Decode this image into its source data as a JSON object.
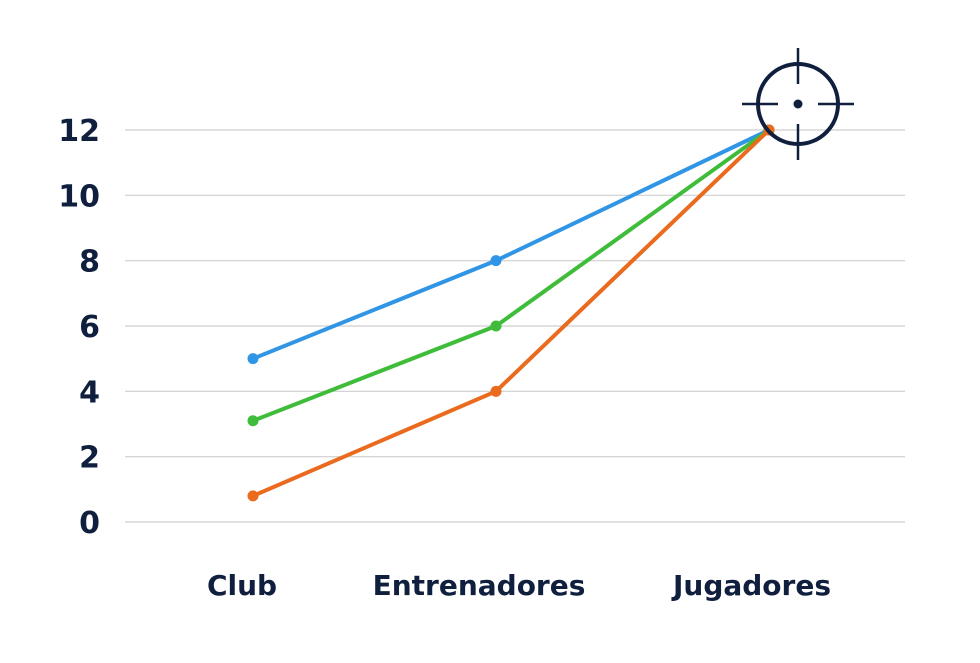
{
  "chart_data": {
    "type": "line",
    "categories": [
      "Club",
      "Entrenadores",
      "Jugadores"
    ],
    "series": [
      {
        "color": "#2f95e4",
        "values": [
          5,
          8,
          12
        ]
      },
      {
        "color": "#3fbd3a",
        "values": [
          3.1,
          6,
          12
        ]
      },
      {
        "color": "#ea6a1e",
        "values": [
          0.8,
          4,
          12
        ]
      }
    ],
    "ylim": [
      0,
      12
    ],
    "yticks": [
      "0",
      "2",
      "4",
      "6",
      "8",
      "10",
      "12"
    ],
    "grid": true,
    "legend": "none",
    "marker_icon": "crosshair-target-icon",
    "colors": {
      "text": "#0f1f3d",
      "grid": "#cfcfcf",
      "icon": "#0f1f3d"
    }
  }
}
